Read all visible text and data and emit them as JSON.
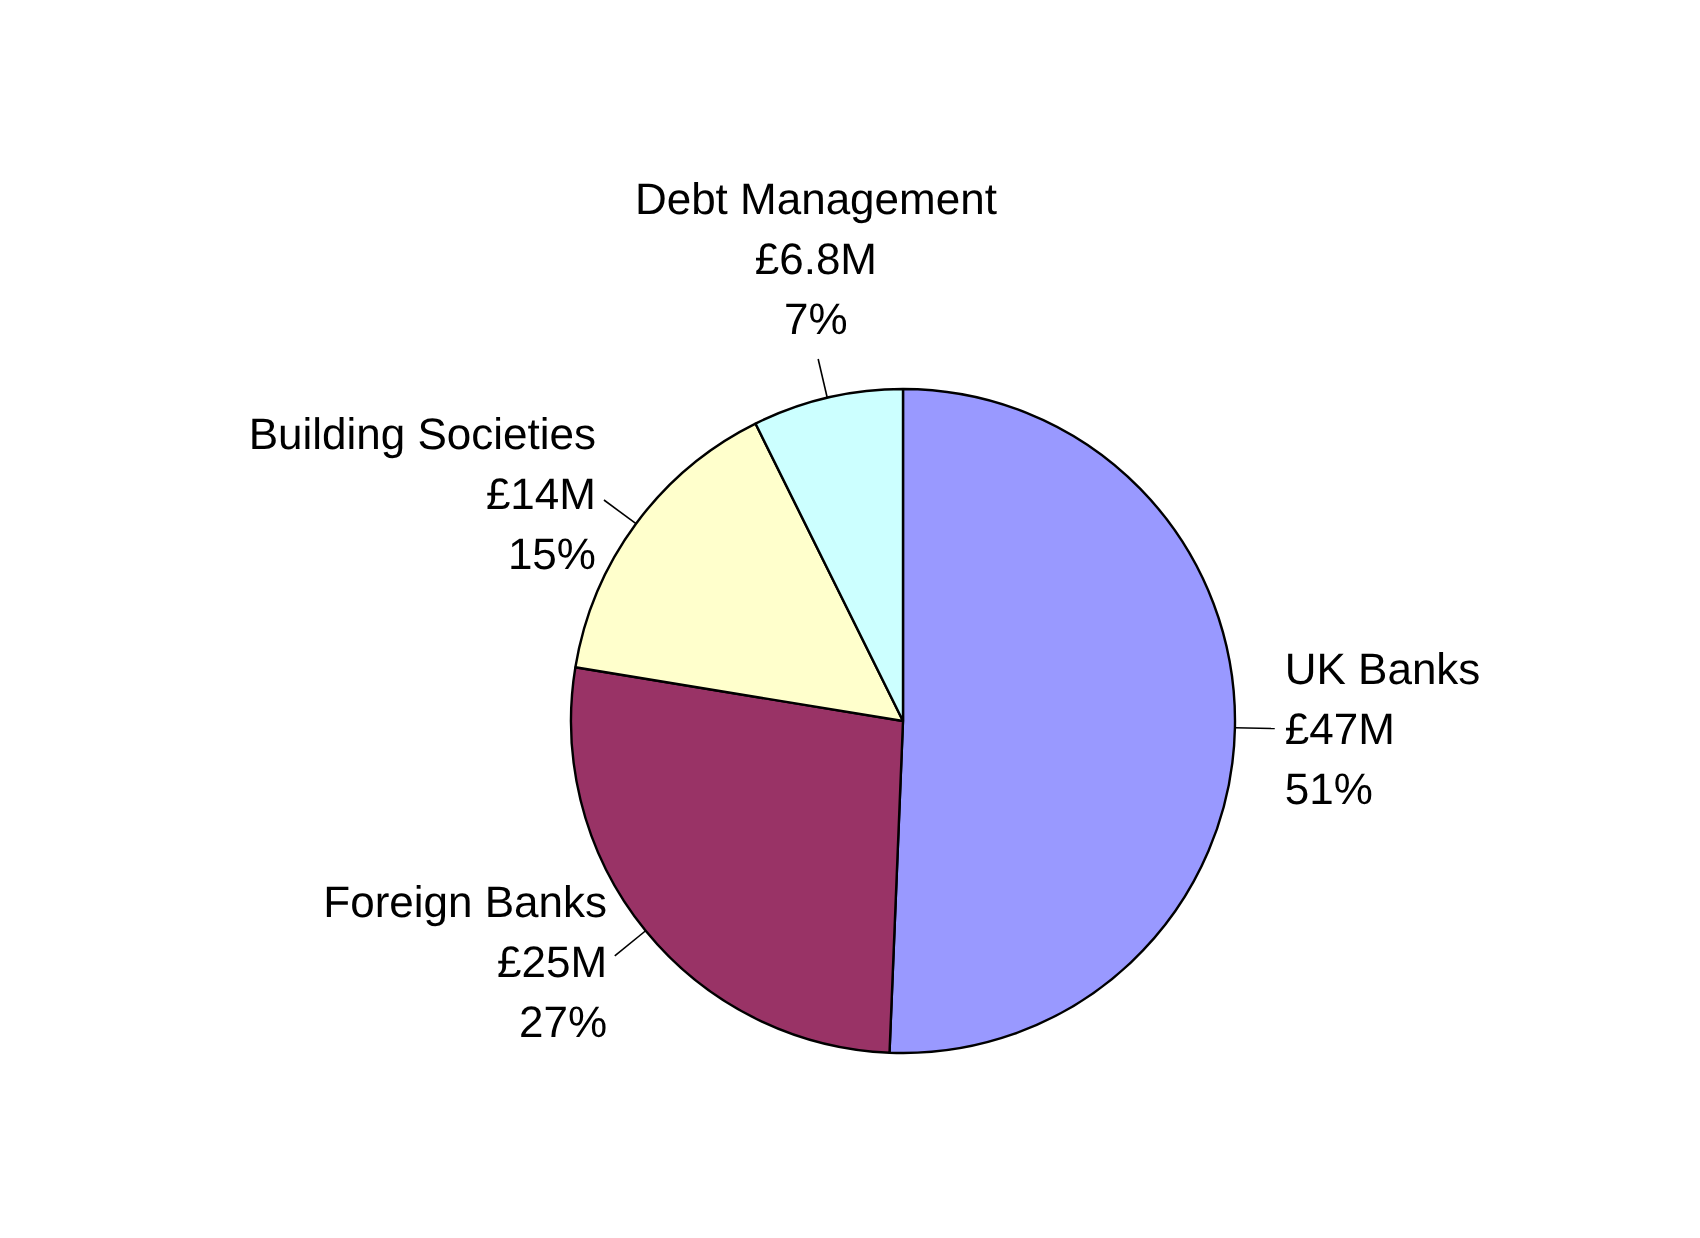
{
  "chart_data": {
    "type": "pie",
    "categories": [
      "UK Banks",
      "Foreign Banks",
      "Building Societies",
      "Debt Management"
    ],
    "values": [
      47,
      25,
      14,
      6.8
    ],
    "colors": [
      "#9999ff",
      "#993366",
      "#ffffcc",
      "#ccffff"
    ],
    "value_labels": [
      "£47M",
      "£25M",
      "£14M",
      "£6.8M"
    ],
    "annotations": [
      "51%",
      "27%",
      "15%",
      "7%"
    ]
  }
}
